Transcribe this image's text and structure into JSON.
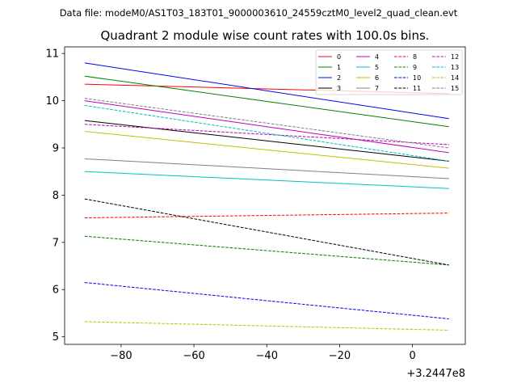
{
  "figure": {
    "suptitle": "Data file: modeM0/AS1T03_183T01_9000003610_24559cztM0_level2_quad_clean.evt"
  },
  "chart_data": {
    "type": "line",
    "title": "Quadrant 2 module wise count rates with 100.0s bins.",
    "xlabel": "",
    "ylabel": "",
    "x_offset_label": "+3.2447e8",
    "xlim": [
      -95.5,
      14.5
    ],
    "ylim": [
      4.84,
      11.14
    ],
    "xticks": [
      -80,
      -60,
      -40,
      -20,
      0
    ],
    "xtick_labels": [
      "−80",
      "−60",
      "−40",
      "−20",
      "0"
    ],
    "yticks": [
      5,
      6,
      7,
      8,
      9,
      10,
      11
    ],
    "ytick_labels": [
      "5",
      "6",
      "7",
      "8",
      "9",
      "10",
      "11"
    ],
    "x": [
      -90,
      10
    ],
    "legend_position": "top-right",
    "series": [
      {
        "name": "0",
        "values": [
          10.35,
          10.15
        ],
        "color": "#ff0000",
        "dashed": false
      },
      {
        "name": "1",
        "values": [
          10.52,
          9.45
        ],
        "color": "#008000",
        "dashed": false
      },
      {
        "name": "2",
        "values": [
          10.8,
          9.62
        ],
        "color": "#0000ff",
        "dashed": false
      },
      {
        "name": "3",
        "values": [
          9.58,
          8.72
        ],
        "color": "#000000",
        "dashed": false
      },
      {
        "name": "4",
        "values": [
          10.0,
          8.9
        ],
        "color": "#bf00bf",
        "dashed": false
      },
      {
        "name": "5",
        "values": [
          8.5,
          8.14
        ],
        "color": "#00bfbf",
        "dashed": false
      },
      {
        "name": "6",
        "values": [
          9.35,
          8.57
        ],
        "color": "#bfbf00",
        "dashed": false
      },
      {
        "name": "7",
        "values": [
          8.77,
          8.35
        ],
        "color": "#808080",
        "dashed": false
      },
      {
        "name": "8",
        "values": [
          7.52,
          7.62
        ],
        "color": "#ff0000",
        "dashed": true
      },
      {
        "name": "9",
        "values": [
          7.13,
          6.52
        ],
        "color": "#008000",
        "dashed": true
      },
      {
        "name": "10",
        "values": [
          6.15,
          5.38
        ],
        "color": "#0000ff",
        "dashed": true
      },
      {
        "name": "11",
        "values": [
          7.92,
          6.52
        ],
        "color": "#000000",
        "dashed": true
      },
      {
        "name": "12",
        "values": [
          9.5,
          9.07
        ],
        "color": "#bf00bf",
        "dashed": true
      },
      {
        "name": "13",
        "values": [
          9.9,
          8.72
        ],
        "color": "#00bfbf",
        "dashed": true
      },
      {
        "name": "14",
        "values": [
          5.32,
          5.14
        ],
        "color": "#bfbf00",
        "dashed": true
      },
      {
        "name": "15",
        "values": [
          10.05,
          9.0
        ],
        "color": "#808080",
        "dashed": true
      }
    ]
  }
}
